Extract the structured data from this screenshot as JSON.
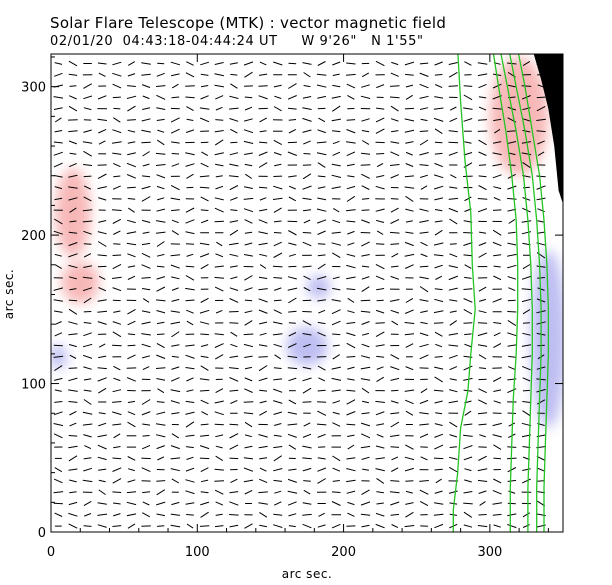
{
  "title": "Solar Flare Telescope (MTK) : vector magnetic field",
  "subtitle": "02/01/20  04:43:18-04:44:24 UT     W 9'26\"   N 1'55\"",
  "chart_data": {
    "type": "heatmap",
    "description_kind": "vector magnetogram with contour overlay",
    "xlabel": "arc sec.",
    "ylabel": "arc sec.",
    "xlim": [
      0,
      350
    ],
    "ylim": [
      0,
      322
    ],
    "x_ticks": [
      0,
      100,
      200,
      300
    ],
    "y_ticks": [
      0,
      100,
      200,
      300
    ],
    "vector_field": {
      "x_step": 10,
      "y_step": 7.6,
      "x_start": 5,
      "y_start": 4,
      "x_end": 335
    },
    "polarity_patches": [
      {
        "polarity": "positive",
        "x": 15,
        "y": 215,
        "rx": 12,
        "ry": 30
      },
      {
        "polarity": "positive",
        "x": 20,
        "y": 168,
        "rx": 13,
        "ry": 14
      },
      {
        "polarity": "negative",
        "x": 175,
        "y": 125,
        "rx": 14,
        "ry": 13
      },
      {
        "polarity": "negative",
        "x": 183,
        "y": 165,
        "rx": 8,
        "ry": 8
      },
      {
        "polarity": "negative",
        "x": 5,
        "y": 118,
        "rx": 6,
        "ry": 8
      },
      {
        "polarity": "positive",
        "x": 320,
        "y": 280,
        "rx": 20,
        "ry": 40
      },
      {
        "polarity": "negative",
        "x": 340,
        "y": 130,
        "rx": 12,
        "ry": 60
      }
    ],
    "contours": [
      [
        [
          278,
          325
        ],
        [
          280,
          290
        ],
        [
          283,
          250
        ],
        [
          287,
          215
        ],
        [
          288,
          180
        ],
        [
          290,
          150
        ],
        [
          287,
          120
        ],
        [
          285,
          95
        ],
        [
          280,
          70
        ],
        [
          278,
          40
        ],
        [
          275,
          15
        ],
        [
          275,
          0
        ]
      ],
      [
        [
          302,
          325
        ],
        [
          306,
          300
        ],
        [
          311,
          270
        ],
        [
          315,
          240
        ],
        [
          318,
          210
        ],
        [
          319,
          180
        ],
        [
          319,
          150
        ],
        [
          318,
          120
        ],
        [
          316,
          90
        ],
        [
          315,
          60
        ],
        [
          314,
          30
        ],
        [
          314,
          0
        ]
      ],
      [
        [
          307,
          325
        ],
        [
          312,
          300
        ],
        [
          318,
          270
        ],
        [
          323,
          240
        ],
        [
          326,
          210
        ],
        [
          328,
          180
        ],
        [
          329,
          150
        ],
        [
          329,
          120
        ],
        [
          328,
          90
        ],
        [
          327,
          60
        ],
        [
          326,
          30
        ],
        [
          326,
          0
        ]
      ],
      [
        [
          313,
          325
        ],
        [
          318,
          300
        ],
        [
          324,
          270
        ],
        [
          329,
          240
        ],
        [
          332,
          210
        ],
        [
          334,
          180
        ],
        [
          335,
          150
        ],
        [
          335,
          120
        ],
        [
          334,
          90
        ],
        [
          333,
          60
        ],
        [
          332,
          30
        ],
        [
          332,
          0
        ]
      ],
      [
        [
          319,
          325
        ],
        [
          324,
          300
        ],
        [
          329,
          270
        ],
        [
          334,
          240
        ],
        [
          337,
          210
        ],
        [
          339,
          180
        ],
        [
          340,
          150
        ],
        [
          340,
          120
        ],
        [
          339,
          90
        ],
        [
          338,
          60
        ],
        [
          337,
          30
        ],
        [
          337,
          0
        ]
      ]
    ],
    "colors": {
      "positive": "#f5a0a0",
      "negative": "#a8a8ee",
      "contour": "#22c522",
      "off_disk": "#000000"
    }
  }
}
